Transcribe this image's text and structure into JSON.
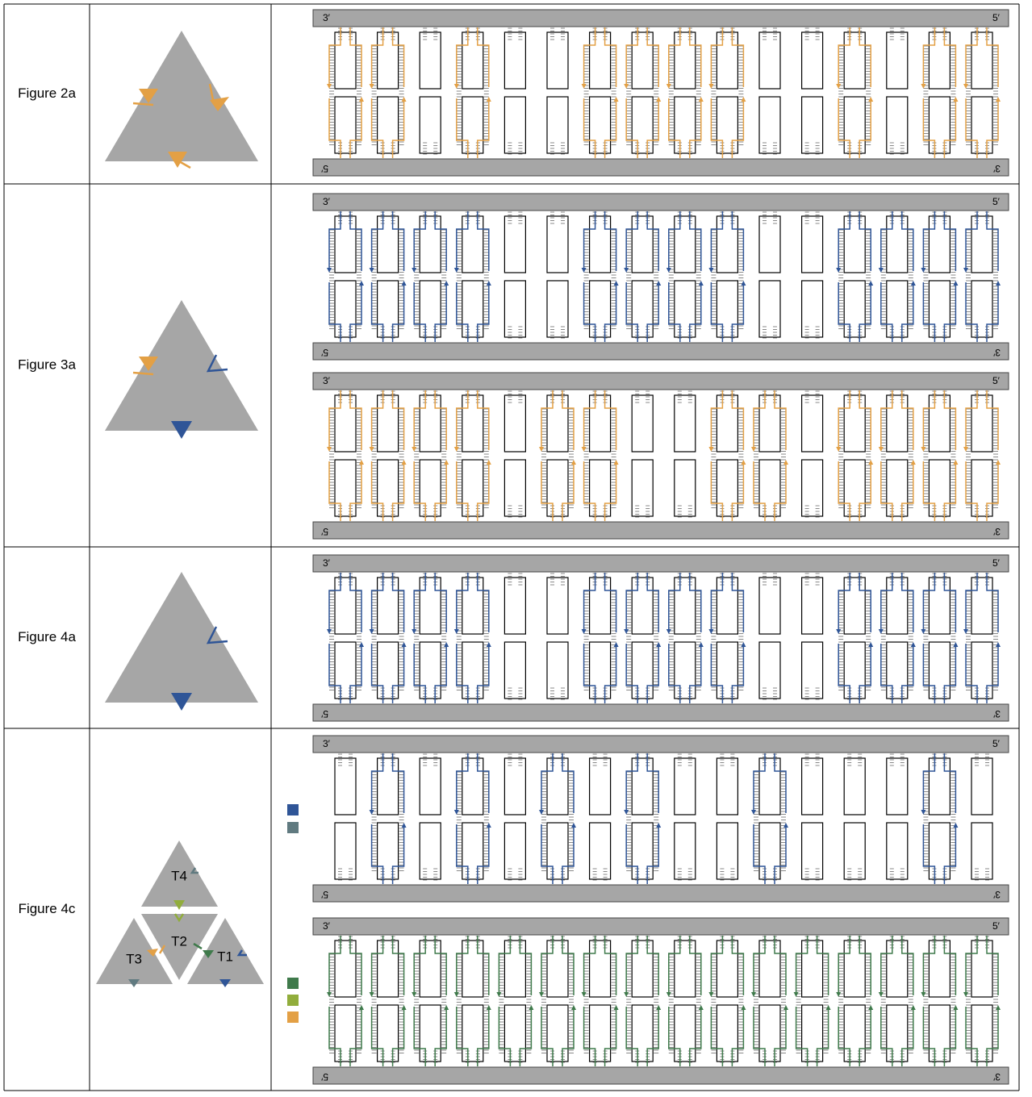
{
  "rows": [
    {
      "label": "Figure 2a",
      "panels": [
        {
          "top_left": "3′",
          "top_right": "5′",
          "bottom_left": "5′",
          "bottom_right": "3′"
        }
      ]
    },
    {
      "label": "Figure 3a",
      "panels": [
        {
          "top_left": "3′",
          "top_right": "5′",
          "bottom_left": "5′",
          "bottom_right": "3′"
        },
        {
          "top_left": "3′",
          "top_right": "5′",
          "bottom_left": "5′",
          "bottom_right": "3′"
        }
      ]
    },
    {
      "label": "Figure 4a",
      "panels": [
        {
          "top_left": "3′",
          "top_right": "5′",
          "bottom_left": "5′",
          "bottom_right": "3′"
        }
      ]
    },
    {
      "label": "Figure 4c",
      "tiles": [
        "T4",
        "T2",
        "T3",
        "T1"
      ],
      "panels": [
        {
          "top_left": "3′",
          "top_right": "5′",
          "bottom_left": "5′",
          "bottom_right": "3′"
        },
        {
          "top_left": "3′",
          "top_right": "5′",
          "bottom_left": "5′",
          "bottom_right": "3′"
        }
      ]
    }
  ]
}
